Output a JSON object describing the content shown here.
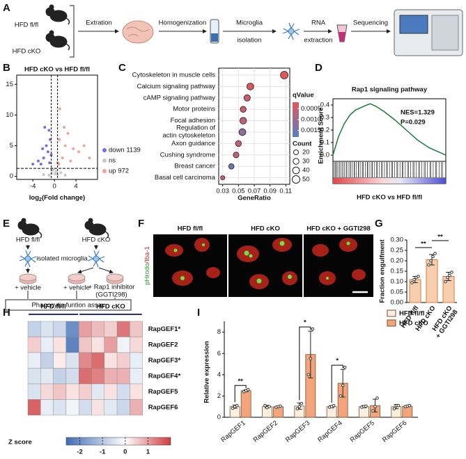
{
  "panel_labels": [
    "A",
    "B",
    "C",
    "D",
    "E",
    "F",
    "G",
    "H",
    "I"
  ],
  "workflow": {
    "groups": [
      "HFD fl/fl",
      "HFD cKO"
    ],
    "steps": [
      [
        "Extration"
      ],
      [
        "Homogenization"
      ],
      [
        "Microglia",
        "isolation"
      ],
      [
        "RNA",
        "extraction"
      ],
      [
        "Sequencing"
      ]
    ]
  },
  "assay": {
    "groups": [
      "HFD fl/fl",
      "HFD cKO"
    ],
    "cells": "isolated microglia",
    "treatments": [
      [
        "+ vehicle"
      ],
      [
        "+ vehicle"
      ],
      [
        "+ Rap1 inhibitor",
        "(GGTI298)"
      ]
    ],
    "assay": "Phagocytic funtion assay"
  },
  "imaging": {
    "conditions": [
      "HFD fl/fl",
      "HFD cKO",
      "HFD cKO + GGTI298"
    ],
    "stain": [
      "pHrodo",
      "/Iba-1"
    ],
    "stain_colors": [
      "#2a9a2a",
      "#c0282a"
    ]
  },
  "chart_data": [
    {
      "type": "scatter",
      "title": "HFD cKO vs HFD fl/fl",
      "x_label": [
        "log",
        "2",
        "(Fold change)"
      ],
      "xlim": [
        -7,
        8
      ],
      "ylim": [
        -0.5,
        16.5
      ],
      "xticks": [
        -4,
        0,
        4
      ],
      "yticks": [
        0,
        5,
        10,
        15
      ],
      "thresholds": {
        "x": [
          -0.58,
          0.58
        ],
        "y": 1.3
      },
      "series": [
        {
          "name": "down 1139",
          "color": "#7470e0",
          "x": [
            -1.2,
            -2.0,
            -0.8,
            -3.0,
            -1.5,
            -2.5,
            -0.6,
            -1.0,
            -4.0,
            -1.8,
            -0.9,
            -2.2
          ],
          "y": [
            4,
            3,
            6,
            2.5,
            5,
            2,
            3.5,
            7.5,
            2,
            8,
            2.2,
            4.5
          ]
        },
        {
          "name": "ns",
          "color": "#c8c8c8",
          "x": [
            -0.5,
            0.3,
            -0.2,
            0.6,
            -1.0,
            1.2,
            -0.3,
            0.1,
            -2,
            2
          ],
          "y": [
            0.5,
            0.8,
            1.2,
            0.3,
            0.2,
            0.6,
            1.0,
            0.4,
            0.3,
            0.2
          ]
        },
        {
          "name": "up 972",
          "color": "#eda59c",
          "x": [
            0.8,
            1.5,
            2.0,
            3.0,
            1.0,
            4.5,
            5.5,
            2.5,
            0.6,
            6.5,
            1.8,
            3.5,
            0.9
          ],
          "y": [
            2,
            3,
            5,
            2.5,
            11,
            4,
            5,
            7,
            2.2,
            3,
            8,
            4.5,
            6
          ]
        }
      ]
    },
    {
      "type": "dot",
      "x_label": "GeneRatio",
      "categories": [
        "Cytoskeleton in muscle cells",
        "Calcium signaling pathway",
        "cAMP signaling pathway",
        "Motor proteins",
        "Focal adhesion",
        [
          "Regulation of",
          "actin cytoskeleton"
        ],
        "Axon guidance",
        "Cushing syndrome",
        "Breast cancer",
        "Basal cell carcinoma"
      ],
      "label_colors": [
        "#111111",
        "#111111",
        "#111111",
        "#c0282a",
        "#c0282a",
        "#c0282a",
        "#111111",
        "#111111",
        "#111111",
        "#111111"
      ],
      "values": [
        0.108,
        0.065,
        0.061,
        0.056,
        0.056,
        0.055,
        0.05,
        0.047,
        0.041,
        0.03
      ],
      "qvalues": [
        0.0002,
        0.0003,
        0.0004,
        0.0005,
        0.0006,
        0.0012,
        0.0006,
        0.0006,
        0.0016,
        0.0004
      ],
      "counts": [
        50,
        40,
        35,
        30,
        38,
        40,
        30,
        28,
        25,
        15
      ],
      "xlim": [
        0.025,
        0.115
      ],
      "xticks": [
        0.03,
        0.05,
        0.07,
        0.09,
        0.11
      ],
      "q_title": "qValue",
      "q_lim": [
        0.0002,
        0.0018
      ],
      "q_ticks": [
        0.0005,
        {
          "value": 0.001,
          "label": "0.0010"
        },
        0.0015
      ],
      "q_colors": [
        "#e0585a",
        "#5b7dc0"
      ],
      "size_title": "Count",
      "size_ticks": [
        20,
        30,
        40,
        50
      ]
    },
    {
      "type": "gsea",
      "title": "Rap1 signaling pathway",
      "y_label": "Enrichment Score",
      "x_label": "HFD cKO vs HFD fl/fl",
      "annotations": [
        "NES=1.329",
        "P=0.029"
      ],
      "x": [
        0,
        0.05,
        0.1,
        0.15,
        0.2,
        0.25,
        0.3,
        0.33,
        0.38,
        0.45,
        0.55,
        0.65,
        0.75,
        0.85,
        0.95,
        1
      ],
      "values": [
        0,
        0.15,
        0.25,
        0.32,
        0.36,
        0.38,
        0.4,
        0.41,
        0.39,
        0.35,
        0.28,
        0.2,
        0.12,
        0.06,
        0.02,
        0
      ],
      "color": "#1a7a3a",
      "xlim": [
        0,
        1
      ],
      "ylim": [
        -0.05,
        0.45
      ],
      "yticks": [
        {
          "value": 0,
          "label": "0.0"
        },
        0.1,
        0.2,
        0.3,
        0.4
      ]
    },
    {
      "type": "bar",
      "y_label": "Fraction engulfment",
      "categories": [
        "HFD fl/fl",
        "HFD cKO",
        [
          "HFD cKO",
          "+ GGTI298"
        ]
      ],
      "values": [
        0.11,
        0.205,
        0.125
      ],
      "errors": [
        0.015,
        0.025,
        0.02
      ],
      "points": [
        [
          0.095,
          0.11,
          0.12,
          0.125
        ],
        [
          0.18,
          0.2,
          0.22,
          0.235
        ],
        [
          0.1,
          0.12,
          0.13,
          0.145
        ]
      ],
      "color": "#f8cfae",
      "edge": "#d9783c",
      "ylim": [
        0,
        0.3
      ],
      "yticks": [
        {
          "value": 0,
          "label": "0.00"
        },
        0.05,
        {
          "value": 0.1,
          "label": "0.10"
        },
        0.15,
        {
          "value": 0.2,
          "label": "0.20"
        },
        0.25,
        {
          "value": 0.3,
          "label": "0.30"
        }
      ],
      "significance": [
        {
          "text": "**",
          "pair": [
            0,
            1
          ]
        },
        {
          "text": "**",
          "pair": [
            1,
            2
          ]
        }
      ]
    },
    {
      "type": "heatmap",
      "groups": [
        "HFD fl/fl",
        "HFD cKO"
      ],
      "rows": [
        "RapGEF1*",
        "RapGEF2",
        "RapGEF3*",
        "RapGEF4*",
        "RapGEF5",
        "RapGEF6"
      ],
      "values": [
        [
          [
            -0.8,
            -0.5,
            -0.7,
            -2.0
          ],
          [
            1.0,
            0.7,
            0.5,
            1.4,
            0.6
          ]
        ],
        [
          [
            0.5,
            -0.3,
            0.3,
            -2.2
          ],
          [
            0.6,
            0.3,
            1.0,
            -0.2,
            0.4
          ]
        ],
        [
          [
            -0.3,
            -0.8,
            0.2,
            -0.5
          ],
          [
            1.2,
            1.5,
            0.3,
            0.5,
            -0.3
          ]
        ],
        [
          [
            -0.5,
            -0.4,
            -0.8,
            -0.6
          ],
          [
            1.5,
            1.3,
            0.8,
            0.8,
            -0.3
          ]
        ],
        [
          [
            -0.5,
            0.4,
            0.6,
            0.3
          ],
          [
            0.5,
            -0.4,
            0.3,
            -0.6,
            0.3
          ]
        ],
        [
          [
            1.6,
            -0.3,
            -0.5,
            -0.2
          ],
          [
            -0.6,
            0.3,
            -0.4,
            -0.7,
            0.8
          ]
        ]
      ],
      "legend_title": "Z score",
      "clim": [
        -2.6,
        2
      ],
      "ticks": [
        -2,
        -1,
        0,
        1
      ],
      "colors": [
        "#3f6db3",
        "#ffffff",
        "#cd3c3f"
      ],
      "group_color": "#2a2a8a"
    },
    {
      "type": "grouped_bar",
      "y_label": "Relative expression",
      "categories": [
        "RapGEF1",
        "RapGEF2",
        "RapGEF3",
        "RapGEF4",
        "RapGEF5",
        "RapGEF6"
      ],
      "series": [
        {
          "name": "HFD fl/fl",
          "color": "#fcefe0",
          "values": [
            1.0,
            1.0,
            1.05,
            1.0,
            1.0,
            1.0
          ],
          "errors": [
            0.15,
            0.12,
            0.3,
            0.1,
            0.1,
            0.2
          ],
          "points": [
            [
              0.85,
              1.0,
              1.1
            ],
            [
              1.1,
              0.9,
              1.0
            ],
            [
              0.8,
              1.0,
              1.3
            ],
            [
              0.95,
              1.0,
              1.1
            ],
            [
              0.95,
              1.0,
              1.05
            ],
            [
              0.8,
              1.1,
              1.1
            ]
          ]
        },
        {
          "name": "HFD cKO",
          "color": "#f2a57a",
          "values": [
            2.5,
            1.0,
            5.9,
            3.2,
            1.1,
            1.05
          ],
          "errors": [
            0.1,
            0.05,
            2.2,
            1.3,
            0.6,
            0.05
          ],
          "points": [
            [
              2.4,
              2.5,
              2.6
            ],
            [
              0.95,
              1.0,
              1.05
            ],
            [
              4.0,
              5.5,
              8.3
            ],
            [
              2.0,
              3.0,
              4.7
            ],
            [
              0.6,
              1.0,
              1.8
            ],
            [
              1.0,
              1.05,
              1.1
            ]
          ]
        }
      ],
      "ylim": [
        0,
        8.5
      ],
      "yticks": [
        0,
        2,
        4,
        6,
        8
      ],
      "legend": "upper right",
      "significance": [
        {
          "text": "**",
          "category": 0
        },
        {
          "text": "*",
          "category": 2
        },
        {
          "text": "*",
          "category": 3
        }
      ]
    }
  ]
}
